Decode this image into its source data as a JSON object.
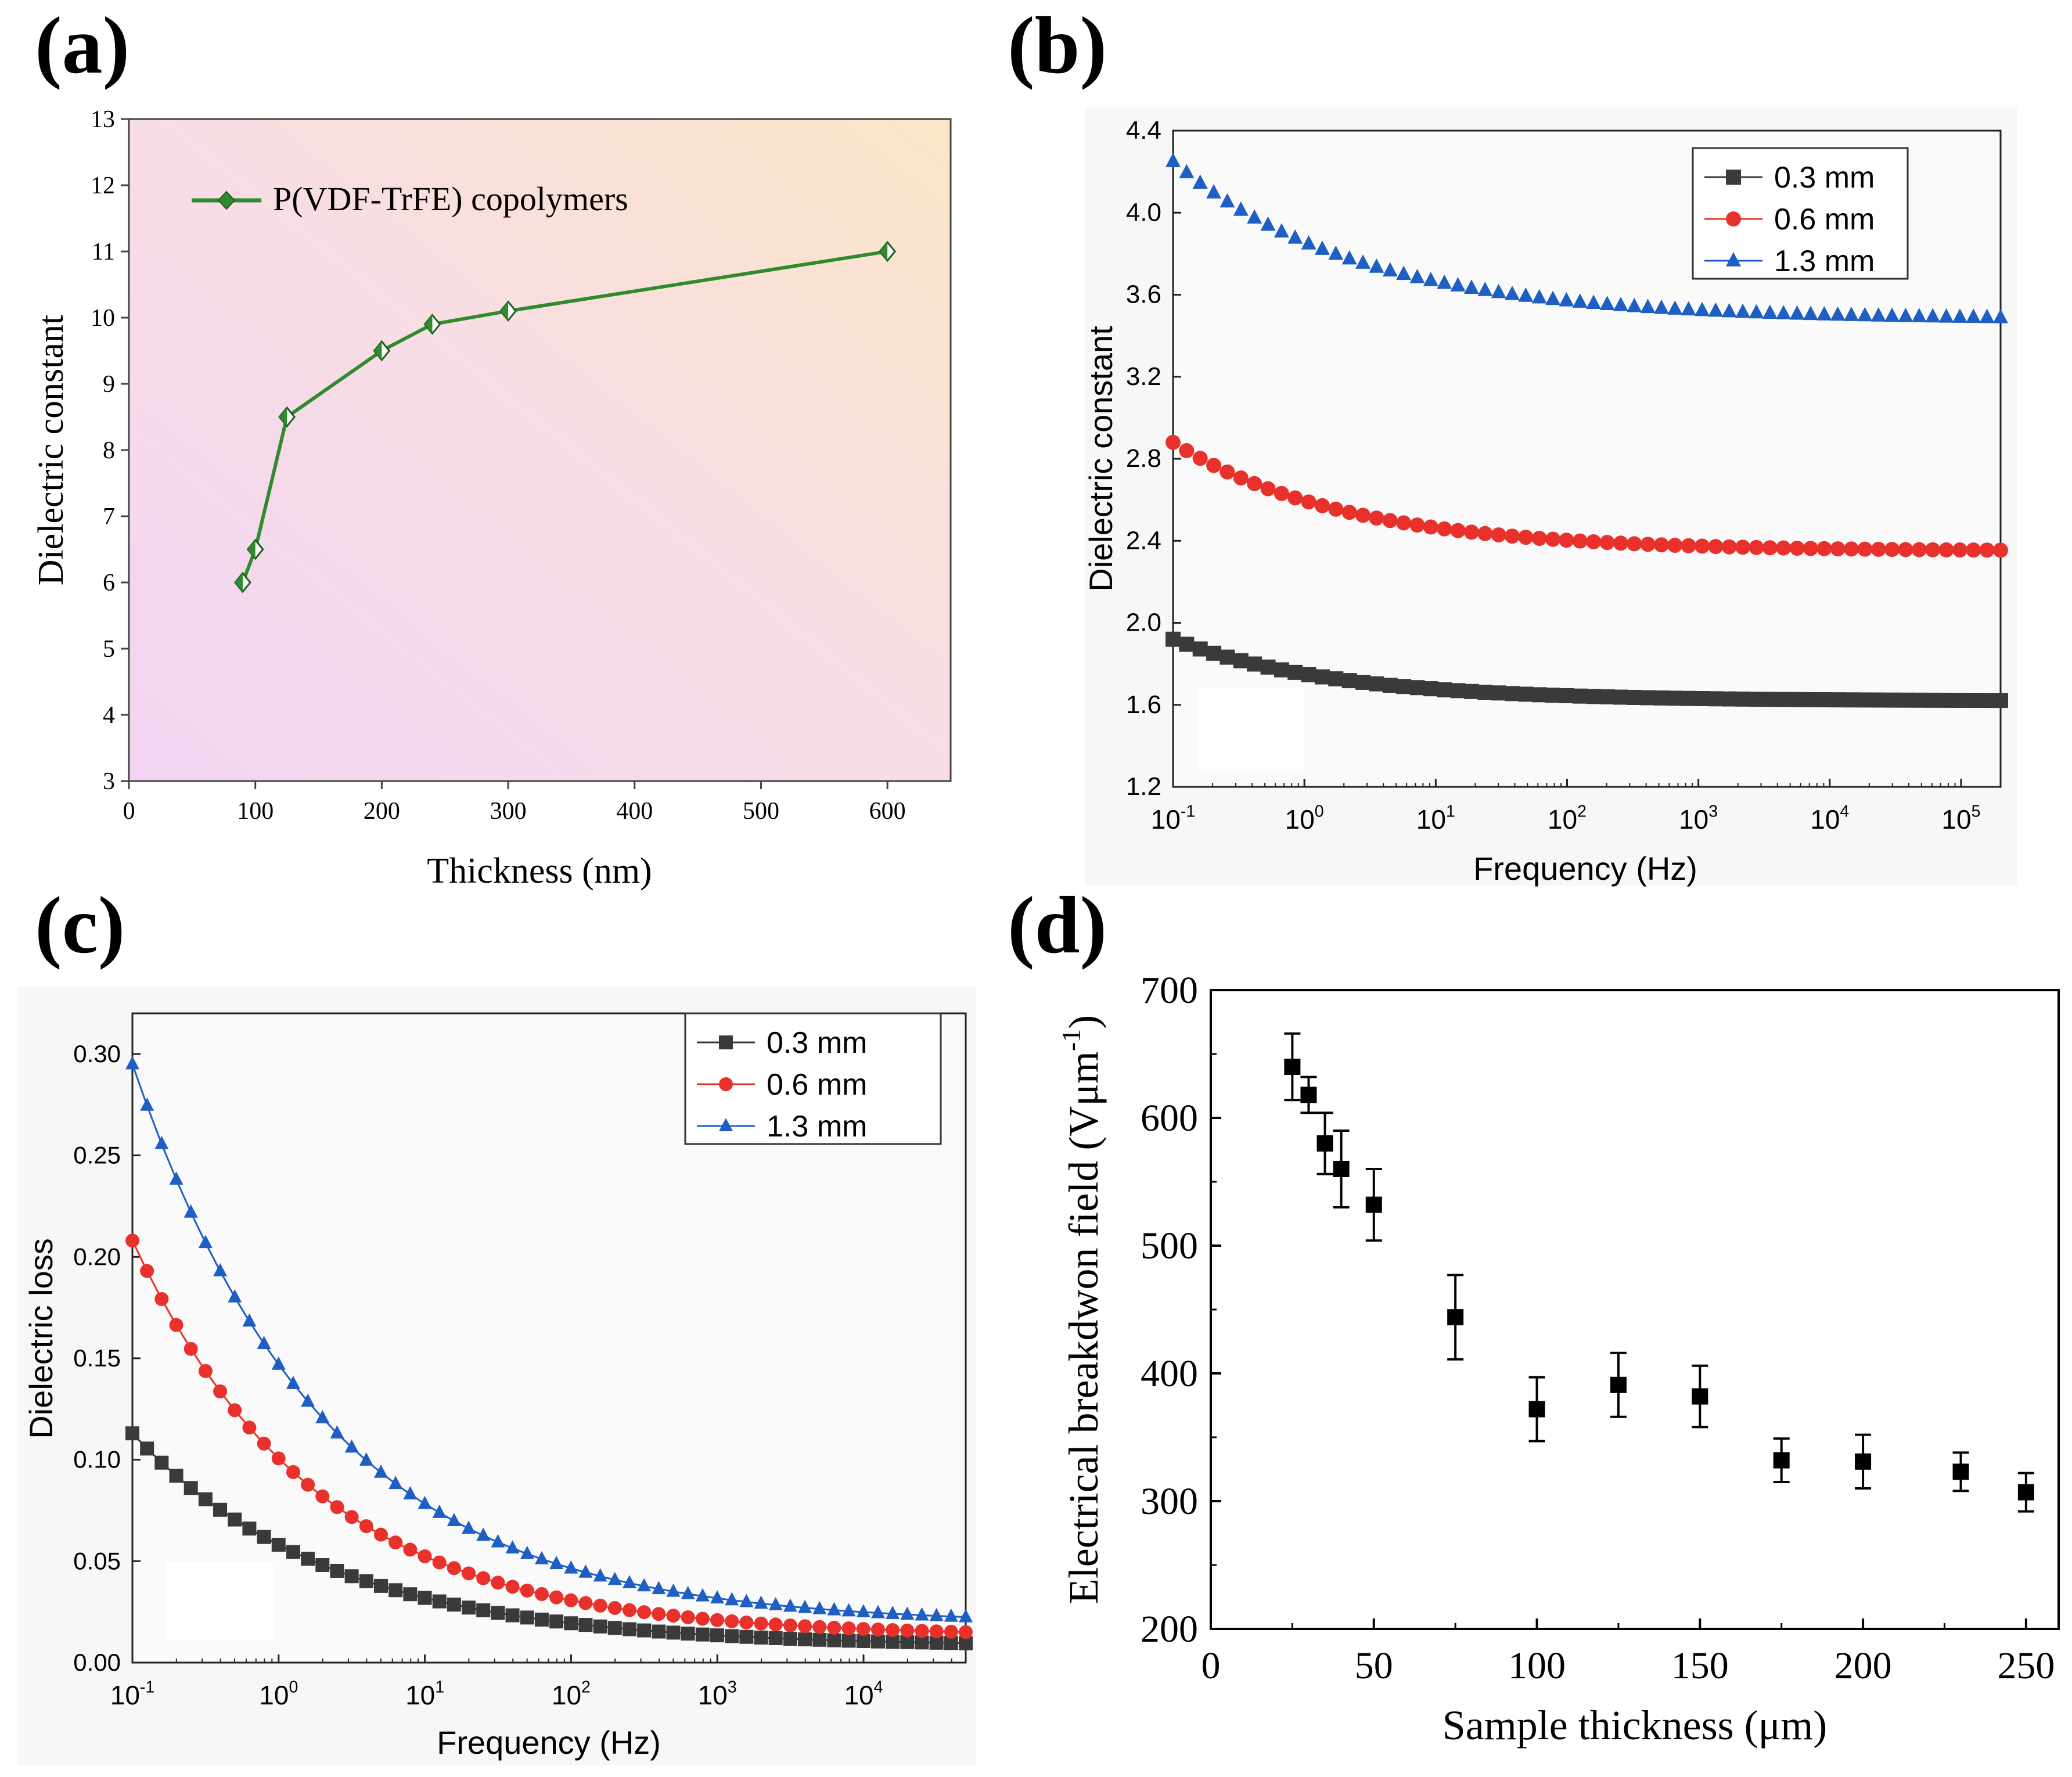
{
  "chart_data": [
    {
      "panel": "(a)",
      "type": "line",
      "title": "",
      "xlabel": "Thickness (nm)",
      "ylabel": "Dielectric constant",
      "xlim": [
        0,
        650
      ],
      "ylim": [
        3,
        13
      ],
      "xticks": [
        "0",
        "100",
        "200",
        "300",
        "400",
        "500",
        "600"
      ],
      "yticks": [
        "3",
        "4",
        "5",
        "6",
        "7",
        "8",
        "9",
        "10",
        "11",
        "12",
        "13"
      ],
      "legend_position": "top-left",
      "series": [
        {
          "name": "P(VDF-TrFE) copolymers",
          "color": "#2e8b2e",
          "marker": "diamond",
          "x": [
            90,
            100,
            125,
            200,
            240,
            300,
            600
          ],
          "y": [
            6.0,
            6.5,
            8.5,
            9.5,
            9.9,
            10.1,
            11.0
          ]
        }
      ]
    },
    {
      "panel": "(b)",
      "type": "scatter",
      "xscale": "log",
      "xlabel": "Frequency (Hz)",
      "ylabel": "Dielectric constant",
      "xlim": [
        0.1,
        200000
      ],
      "ylim": [
        1.2,
        4.4
      ],
      "xticks": [
        "10-1",
        "100",
        "101",
        "102",
        "103",
        "104",
        "105"
      ],
      "yticks": [
        "1.2",
        "1.6",
        "2.0",
        "2.4",
        "2.8",
        "3.2",
        "3.6",
        "4.0",
        "4.4"
      ],
      "legend_position": "top-right",
      "series": [
        {
          "name": "0.3 mm",
          "color": "#3a3a3a",
          "marker": "square",
          "start": 1.92,
          "end": 1.62,
          "tau": 1.2
        },
        {
          "name": "0.6 mm",
          "color": "#e8312b",
          "marker": "circle",
          "start": 2.88,
          "end": 2.35,
          "tau": 1.3
        },
        {
          "name": "1.3 mm",
          "color": "#1f5fc4",
          "marker": "triangle",
          "start": 4.25,
          "end": 3.48,
          "tau": 1.4
        }
      ]
    },
    {
      "panel": "(c)",
      "type": "line",
      "xscale": "log",
      "xlabel": "Frequency (Hz)",
      "ylabel": "Dielectric loss",
      "xlim": [
        0.1,
        50000
      ],
      "ylim": [
        0.0,
        0.32
      ],
      "xticks": [
        "10-1",
        "100",
        "101",
        "102",
        "103",
        "104"
      ],
      "yticks": [
        "0.00",
        "0.05",
        "0.10",
        "0.15",
        "0.20",
        "0.25",
        "0.30"
      ],
      "legend_position": "top-right",
      "series": [
        {
          "name": "0.3 mm",
          "color": "#3a3a3a",
          "marker": "square",
          "start": 0.113,
          "end": 0.008,
          "tau": 1.35
        },
        {
          "name": "0.6 mm",
          "color": "#e8312b",
          "marker": "circle",
          "start": 0.208,
          "end": 0.013,
          "tau": 1.25
        },
        {
          "name": "1.3 mm",
          "color": "#1f5fc4",
          "marker": "triangle",
          "start": 0.295,
          "end": 0.019,
          "tau": 1.3
        }
      ]
    },
    {
      "panel": "(d)",
      "type": "scatter",
      "xlabel": "Sample thickness (μm)",
      "ylabel": "Electrical breakdwon field (Vμm",
      "ylabel_sup": "-1",
      "ylabel_close": ")",
      "xlim": [
        0,
        260
      ],
      "ylim": [
        200,
        700
      ],
      "xticks": [
        "0",
        "50",
        "100",
        "150",
        "200",
        "250"
      ],
      "yticks": [
        "200",
        "300",
        "400",
        "500",
        "600",
        "700"
      ],
      "series": [
        {
          "name": "breakdown",
          "color": "#000000",
          "marker": "square",
          "x": [
            25,
            30,
            35,
            40,
            50,
            75,
            100,
            125,
            150,
            175,
            200,
            230,
            250
          ],
          "y": [
            640,
            618,
            580,
            560,
            532,
            444,
            372,
            391,
            382,
            332,
            331,
            323,
            307
          ],
          "err": [
            26,
            14,
            24,
            30,
            28,
            33,
            25,
            25,
            24,
            17,
            21,
            15,
            15
          ]
        }
      ]
    }
  ]
}
